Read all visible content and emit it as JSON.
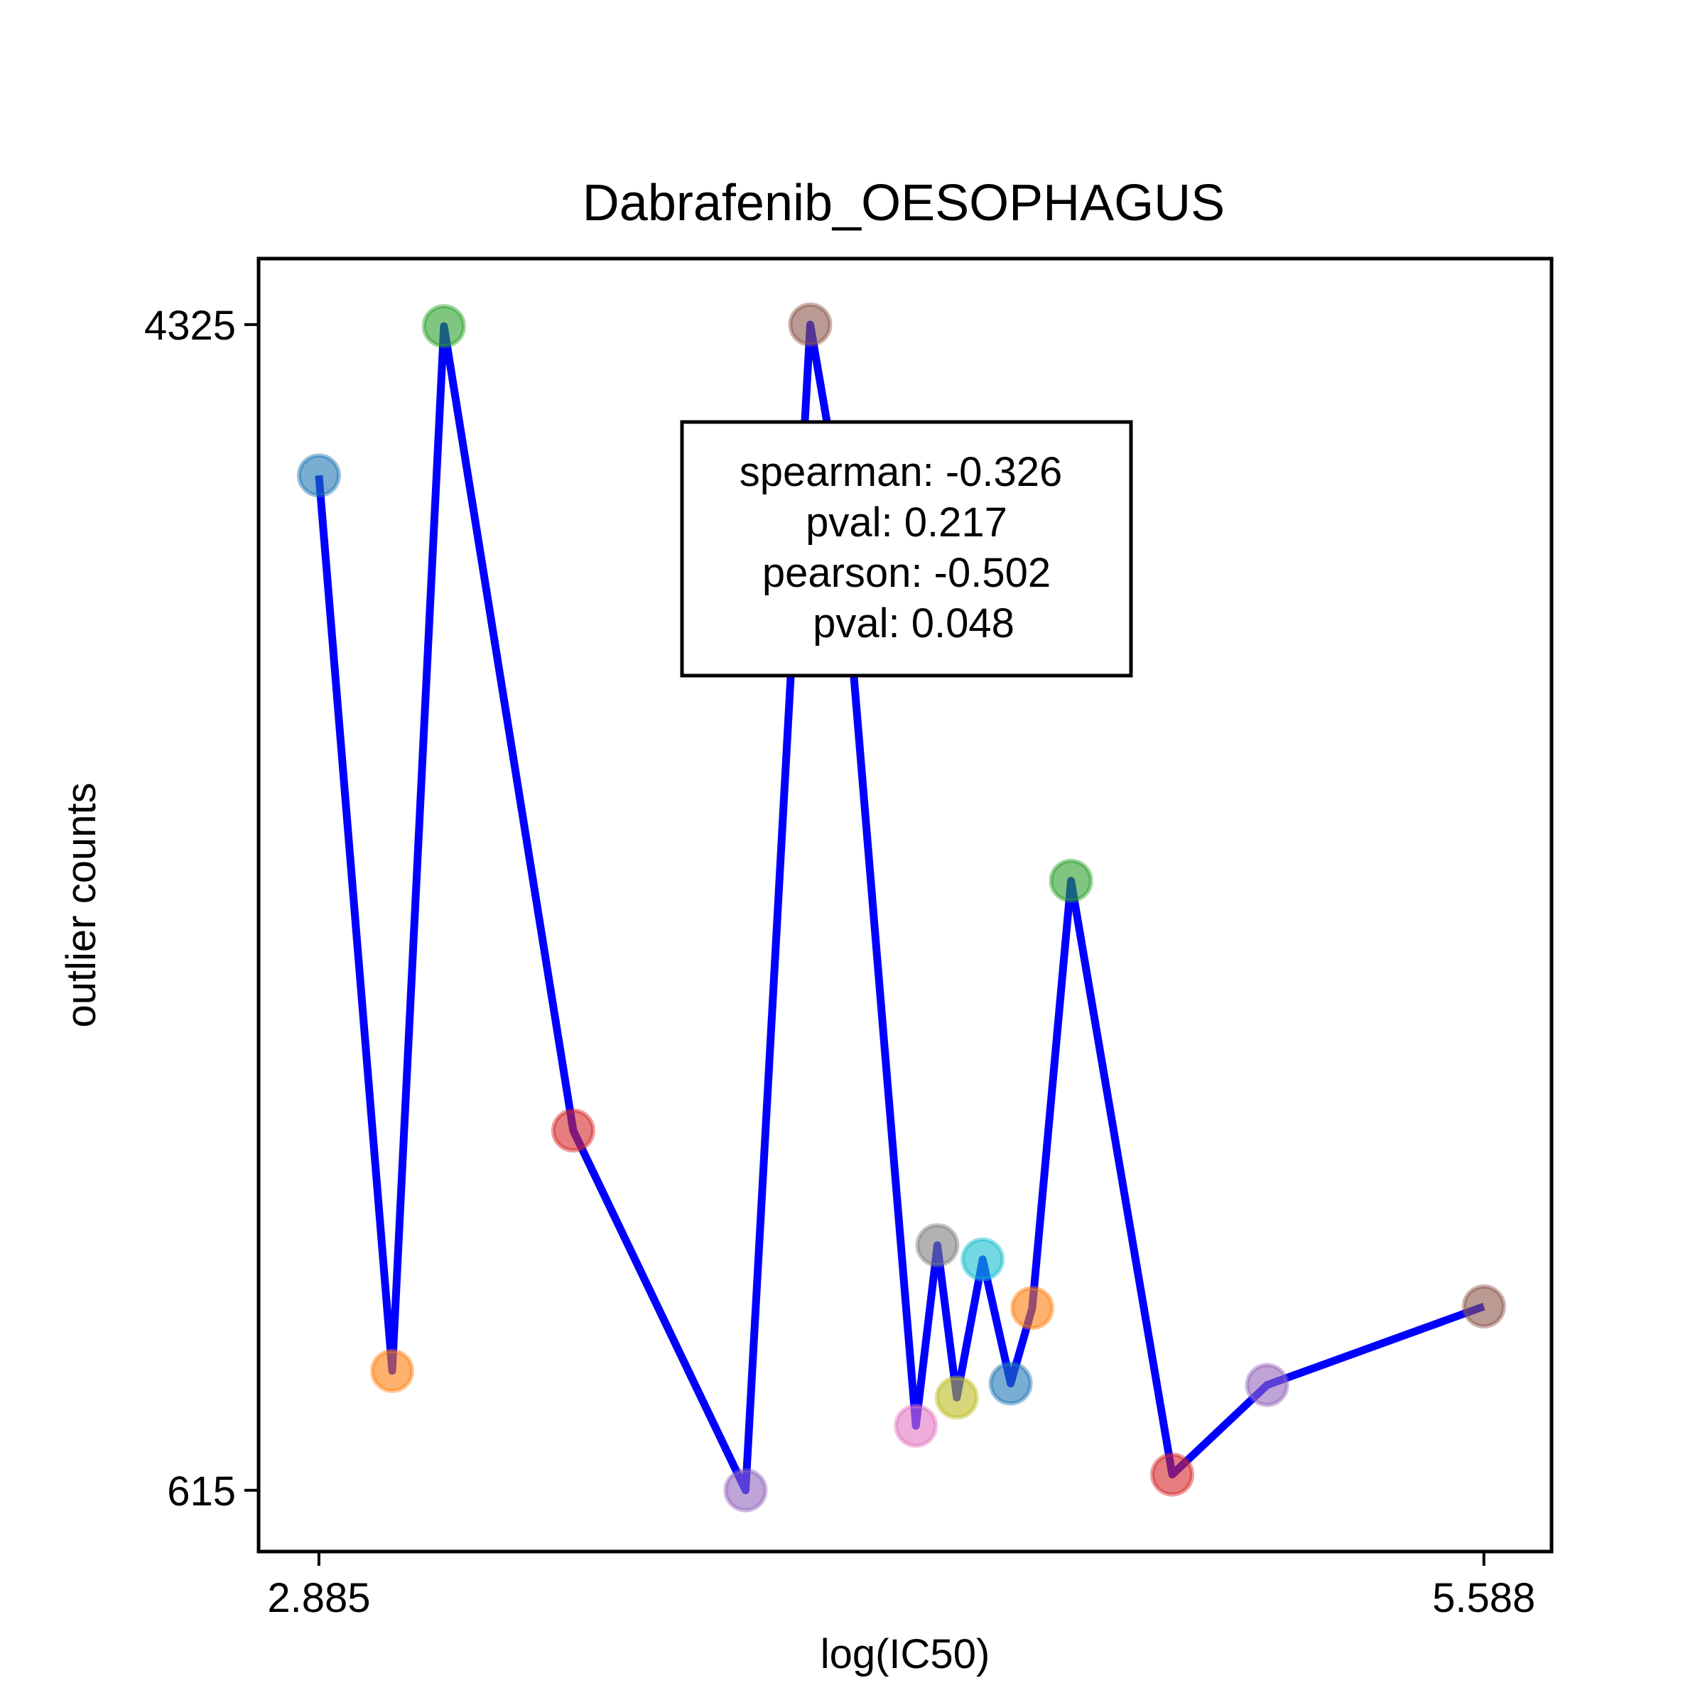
{
  "chart_data": {
    "type": "line",
    "title": "Dabrafenib_OESOPHAGUS",
    "xlabel": "log(IC50)",
    "ylabel": "outlier counts",
    "xlim": [
      2.745,
      5.745
    ],
    "ylim": [
      420,
      4535
    ],
    "xticks": [
      {
        "value": 2.885,
        "label": "2.885"
      },
      {
        "value": 5.588,
        "label": "5.588"
      }
    ],
    "yticks": [
      {
        "value": 615,
        "label": "615"
      },
      {
        "value": 4325,
        "label": "4325"
      }
    ],
    "line_color": "#0000ff",
    "points": [
      {
        "x": 2.885,
        "y": 3845,
        "color": "#1f77b4"
      },
      {
        "x": 3.055,
        "y": 995,
        "color": "#ff7f0e"
      },
      {
        "x": 3.175,
        "y": 4320,
        "color": "#2ca02c"
      },
      {
        "x": 3.475,
        "y": 1760,
        "color": "#d62728"
      },
      {
        "x": 3.875,
        "y": 615,
        "color": "#9467bd"
      },
      {
        "x": 4.025,
        "y": 4325,
        "color": "#8c564b"
      },
      {
        "x": 4.09,
        "y": 3805,
        "color": "#e377c2"
      },
      {
        "x": 4.27,
        "y": 820,
        "color": "#e377c2"
      },
      {
        "x": 4.32,
        "y": 1395,
        "color": "#7f7f7f"
      },
      {
        "x": 4.365,
        "y": 910,
        "color": "#bcbd22"
      },
      {
        "x": 4.425,
        "y": 1350,
        "color": "#17becf"
      },
      {
        "x": 4.49,
        "y": 955,
        "color": "#1f77b4"
      },
      {
        "x": 4.54,
        "y": 1195,
        "color": "#ff7f0e"
      },
      {
        "x": 4.63,
        "y": 2555,
        "color": "#2ca02c"
      },
      {
        "x": 4.865,
        "y": 665,
        "color": "#d62728"
      },
      {
        "x": 5.085,
        "y": 950,
        "color": "#9467bd"
      },
      {
        "x": 5.588,
        "y": 1200,
        "color": "#8c564b"
      }
    ],
    "annotation": {
      "lines": [
        "spearman: -0.326",
        "pval: 0.217",
        "pearson: -0.502",
        "pval: 0.048"
      ]
    }
  }
}
